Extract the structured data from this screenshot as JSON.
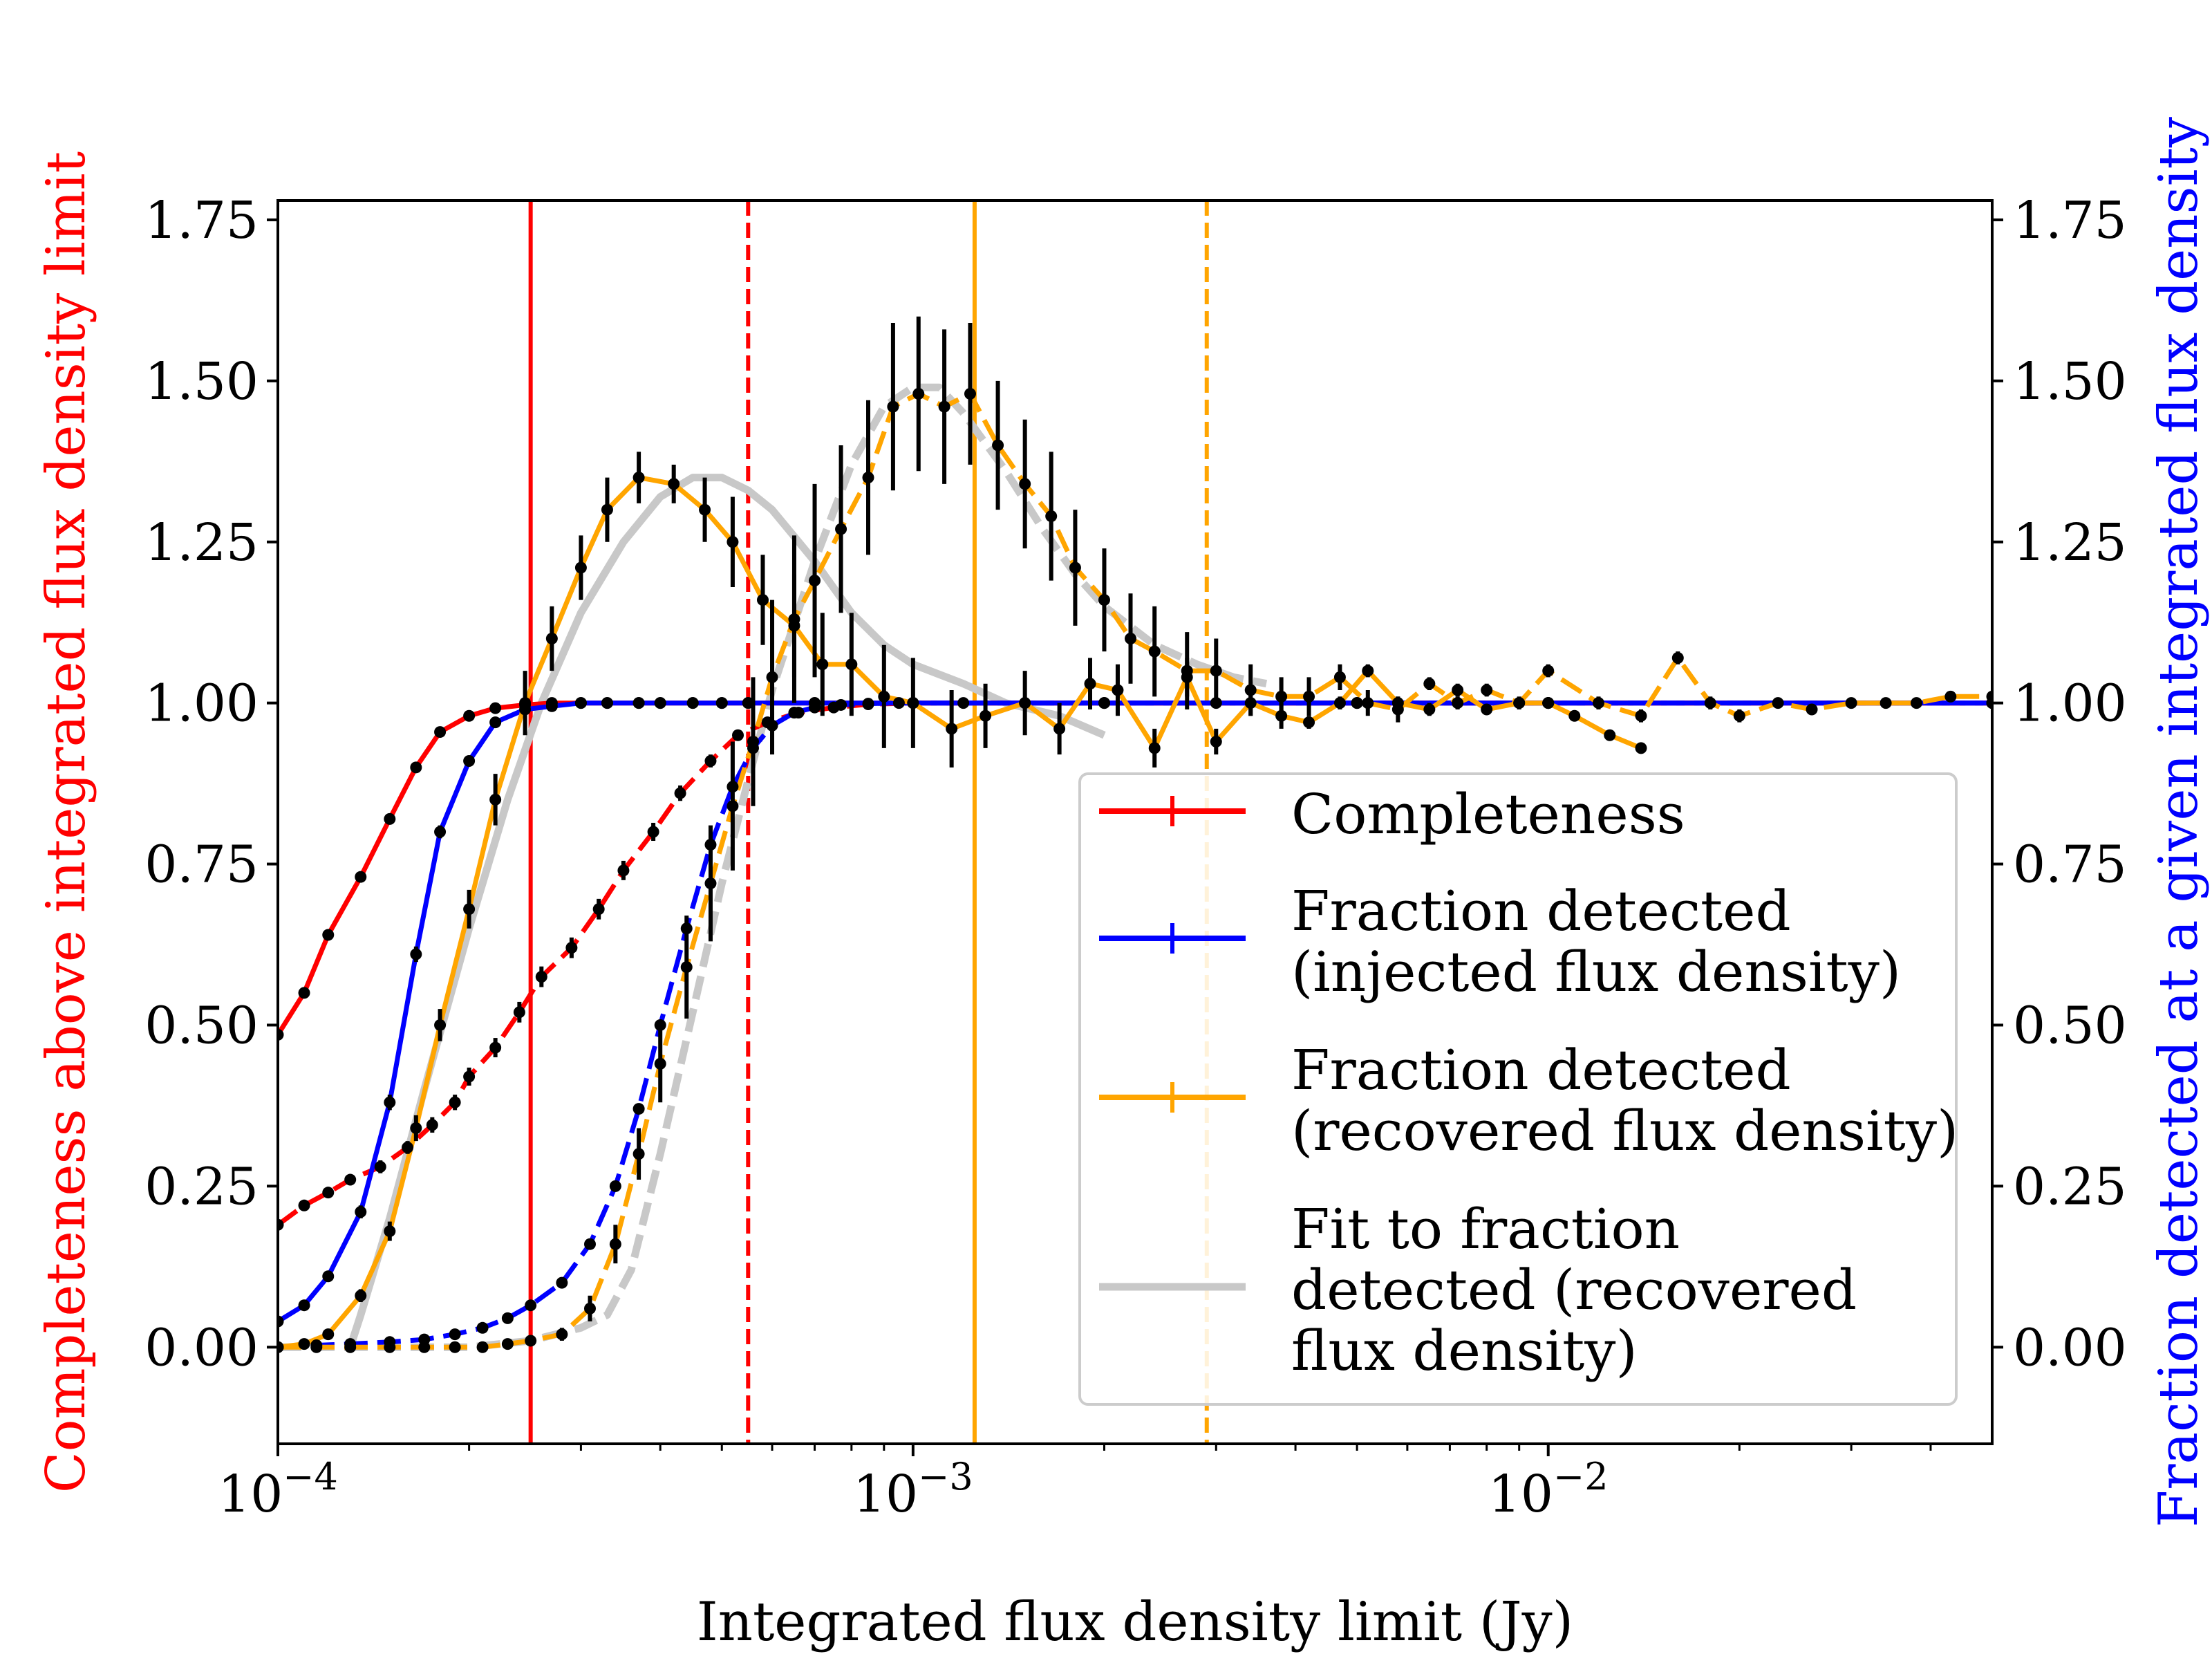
{
  "chart_data": {
    "type": "line",
    "title": "",
    "xlabel": "Integrated flux density limit (Jy)",
    "ylabel_left": "Completeness above integrated flux density limit",
    "ylabel_right": "Fraction detected at a given integrated flux density",
    "xscale": "log",
    "xlim": [
      0.0001,
      0.05
    ],
    "ylim": [
      -0.15,
      1.78
    ],
    "x_ticks": [
      {
        "value": 0.0001,
        "base": "10",
        "exp": "−4"
      },
      {
        "value": 0.001,
        "base": "10",
        "exp": "−3"
      },
      {
        "value": 0.01,
        "base": "10",
        "exp": "−2"
      }
    ],
    "y_ticks": [
      "0.00",
      "0.25",
      "0.50",
      "0.75",
      "1.00",
      "1.25",
      "1.50",
      "1.75"
    ],
    "y_tick_values": [
      0,
      0.25,
      0.5,
      0.75,
      1.0,
      1.25,
      1.5,
      1.75
    ],
    "colors": {
      "red": "#ff0000",
      "blue": "#0000ff",
      "orange": "#ffa500",
      "gray": "#c8c8c8",
      "points": "#000000"
    },
    "vertical_lines": [
      {
        "name": "completeness-limit-solid",
        "x": 0.00025,
        "color": "#ff0000",
        "dashed": false
      },
      {
        "name": "completeness-limit-dashed",
        "x": 0.00055,
        "color": "#ff0000",
        "dashed": true
      },
      {
        "name": "recovered-limit-solid",
        "x": 0.00125,
        "color": "#ffa500",
        "dashed": false
      },
      {
        "name": "recovered-limit-dashed",
        "x": 0.0029,
        "color": "#ffa500",
        "dashed": true
      }
    ],
    "series": [
      {
        "name": "completeness-solid",
        "color": "#ff0000",
        "dashed": false,
        "markers": true,
        "x": [
          0.0001,
          0.00011,
          0.00012,
          0.000135,
          0.00015,
          0.000165,
          0.00018,
          0.0002,
          0.00022,
          0.000245,
          0.00027,
          0.0003,
          0.00033,
          0.00037,
          0.0004,
          0.00045,
          0.0005,
          0.00055,
          0.0007,
          0.001,
          0.002,
          0.005,
          0.01,
          0.05
        ],
        "y": [
          0.485,
          0.55,
          0.64,
          0.73,
          0.82,
          0.9,
          0.955,
          0.98,
          0.992,
          0.997,
          1.0,
          1.0,
          1.0,
          1.0,
          1.0,
          1.0,
          1.0,
          1.0,
          1.0,
          1.0,
          1.0,
          1.0,
          1.0,
          1.0
        ],
        "err": [
          0,
          0.005,
          0.005,
          0.005,
          0.005,
          0.005,
          0.004,
          0.003,
          0.002,
          0.002,
          0,
          0,
          0,
          0,
          0,
          0,
          0,
          0,
          0,
          0,
          0,
          0,
          0,
          0
        ]
      },
      {
        "name": "completeness-dashed",
        "color": "#ff0000",
        "dashed": true,
        "markers": true,
        "x": [
          0.0001,
          0.00011,
          0.00012,
          0.00013,
          0.000145,
          0.00016,
          0.000175,
          0.00019,
          0.0002,
          0.00022,
          0.00024,
          0.00026,
          0.00029,
          0.00032,
          0.00035,
          0.00039,
          0.00043,
          0.00048,
          0.00053,
          0.00059,
          0.00066,
          0.00075,
          0.00085,
          0.001,
          0.0015,
          0.003,
          0.01,
          0.05
        ],
        "y": [
          0.19,
          0.22,
          0.24,
          0.26,
          0.28,
          0.31,
          0.345,
          0.38,
          0.42,
          0.465,
          0.52,
          0.575,
          0.62,
          0.68,
          0.74,
          0.8,
          0.86,
          0.91,
          0.95,
          0.97,
          0.985,
          0.993,
          0.998,
          1.0,
          1.0,
          1.0,
          1.0,
          1.0
        ],
        "err": [
          0,
          0.008,
          0.008,
          0.008,
          0.01,
          0.01,
          0.012,
          0.012,
          0.014,
          0.015,
          0.016,
          0.016,
          0.016,
          0.016,
          0.015,
          0.014,
          0.012,
          0.01,
          0.008,
          0.006,
          0.004,
          0.003,
          0.002,
          0,
          0,
          0,
          0,
          0
        ]
      },
      {
        "name": "injected-solid",
        "color": "#0000ff",
        "dashed": false,
        "markers": true,
        "x": [
          0.0001,
          0.00011,
          0.00012,
          0.000135,
          0.00015,
          0.000165,
          0.00018,
          0.0002,
          0.00022,
          0.000245,
          0.00027,
          0.0003,
          0.00033,
          0.00037,
          0.0004,
          0.00045,
          0.0005,
          0.00055,
          0.0007,
          0.001,
          0.002,
          0.005,
          0.01,
          0.05
        ],
        "y": [
          0.04,
          0.065,
          0.11,
          0.21,
          0.38,
          0.61,
          0.8,
          0.91,
          0.97,
          0.99,
          0.995,
          1.0,
          1.0,
          1.0,
          1.0,
          1.0,
          1.0,
          1.0,
          1.0,
          1.0,
          1.0,
          1.0,
          1.0,
          1.0
        ],
        "err": [
          0,
          0.005,
          0.008,
          0.01,
          0.012,
          0.012,
          0.01,
          0.008,
          0.005,
          0.003,
          0.002,
          0,
          0,
          0,
          0,
          0,
          0,
          0,
          0,
          0,
          0,
          0,
          0,
          0
        ]
      },
      {
        "name": "injected-dashed",
        "color": "#0000ff",
        "dashed": true,
        "markers": true,
        "x": [
          0.0001,
          0.000115,
          0.00013,
          0.00015,
          0.00017,
          0.00019,
          0.00021,
          0.00023,
          0.00025,
          0.00028,
          0.00031,
          0.00034,
          0.00037,
          0.0004,
          0.00044,
          0.00048,
          0.00052,
          0.00056,
          0.0006,
          0.00065,
          0.0007,
          0.00077,
          0.00085,
          0.00095,
          0.0012,
          0.002,
          0.005,
          0.01,
          0.05
        ],
        "y": [
          0.0,
          0.003,
          0.005,
          0.008,
          0.012,
          0.02,
          0.03,
          0.045,
          0.065,
          0.1,
          0.16,
          0.25,
          0.37,
          0.5,
          0.65,
          0.78,
          0.87,
          0.93,
          0.965,
          0.985,
          0.993,
          0.997,
          0.999,
          1.0,
          1.0,
          1.0,
          1.0,
          1.0,
          1.0
        ],
        "err": [
          0,
          0,
          0,
          0,
          0,
          0,
          0,
          0,
          0,
          0,
          0,
          0,
          0,
          0,
          0,
          0,
          0,
          0,
          0,
          0,
          0,
          0,
          0,
          0,
          0,
          0,
          0,
          0,
          0
        ]
      },
      {
        "name": "recovered-solid",
        "color": "#ffa500",
        "dashed": false,
        "markers": true,
        "x": [
          0.0001,
          0.00011,
          0.00012,
          0.000135,
          0.00015,
          0.000165,
          0.00018,
          0.0002,
          0.00022,
          0.000245,
          0.00027,
          0.0003,
          0.00033,
          0.00037,
          0.00042,
          0.00047,
          0.00052,
          0.00058,
          0.00065,
          0.00072,
          0.0008,
          0.0009,
          0.001,
          0.00115,
          0.0013,
          0.0015,
          0.0017,
          0.0019,
          0.0021,
          0.0024,
          0.0027,
          0.003,
          0.0034,
          0.0038,
          0.0042,
          0.0047,
          0.0052,
          0.0058,
          0.0065,
          0.0072,
          0.008,
          0.009,
          0.01,
          0.011,
          0.0125,
          0.014
        ],
        "y": [
          0.0,
          0.005,
          0.02,
          0.08,
          0.18,
          0.34,
          0.5,
          0.68,
          0.85,
          1.0,
          1.1,
          1.21,
          1.3,
          1.35,
          1.34,
          1.3,
          1.25,
          1.16,
          1.12,
          1.06,
          1.06,
          1.01,
          1.0,
          0.96,
          0.98,
          1.0,
          0.96,
          1.03,
          1.02,
          0.93,
          1.04,
          0.94,
          1.0,
          0.98,
          0.97,
          1.0,
          1.05,
          1.0,
          0.99,
          1.02,
          0.99,
          1.0,
          1.0,
          0.98,
          0.95,
          0.93
        ],
        "err": [
          0,
          0.005,
          0.008,
          0.01,
          0.015,
          0.02,
          0.025,
          0.03,
          0.04,
          0.05,
          0.05,
          0.05,
          0.05,
          0.04,
          0.03,
          0.05,
          0.07,
          0.07,
          0.08,
          0.08,
          0.08,
          0.08,
          0.07,
          0.06,
          0.05,
          0.05,
          0.04,
          0.04,
          0.04,
          0.03,
          0.03,
          0.02,
          0.02,
          0.02,
          0.01,
          0.01,
          0.01,
          0.01,
          0.01,
          0.01,
          0.005,
          0.005,
          0.005,
          0.005,
          0.005,
          0.005
        ]
      },
      {
        "name": "recovered-dashed",
        "color": "#ffa500",
        "dashed": true,
        "markers": true,
        "x": [
          0.0001,
          0.000115,
          0.00013,
          0.00015,
          0.00017,
          0.00019,
          0.00021,
          0.00023,
          0.00025,
          0.00028,
          0.00031,
          0.00034,
          0.00037,
          0.0004,
          0.00044,
          0.00048,
          0.00052,
          0.00056,
          0.0006,
          0.00065,
          0.0007,
          0.00077,
          0.00085,
          0.00093,
          0.00102,
          0.00112,
          0.00123,
          0.00136,
          0.0015,
          0.00165,
          0.0018,
          0.002,
          0.0022,
          0.0024,
          0.0027,
          0.003,
          0.0034,
          0.0038,
          0.0042,
          0.0047,
          0.0052,
          0.0058,
          0.0065,
          0.0072,
          0.008,
          0.009,
          0.01,
          0.012,
          0.014,
          0.016,
          0.018,
          0.02,
          0.023,
          0.026,
          0.03,
          0.034,
          0.038,
          0.043,
          0.05
        ],
        "y": [
          0.0,
          0.0,
          0.0,
          0.0,
          0.0,
          0.0,
          0.0,
          0.005,
          0.01,
          0.02,
          0.06,
          0.16,
          0.3,
          0.44,
          0.59,
          0.72,
          0.84,
          0.94,
          1.04,
          1.13,
          1.19,
          1.27,
          1.35,
          1.46,
          1.48,
          1.46,
          1.48,
          1.4,
          1.34,
          1.29,
          1.21,
          1.16,
          1.1,
          1.08,
          1.05,
          1.05,
          1.02,
          1.01,
          1.01,
          1.04,
          1.0,
          0.99,
          1.03,
          1.0,
          1.02,
          1.0,
          1.05,
          1.0,
          0.98,
          1.07,
          1.0,
          0.98,
          1.0,
          0.99,
          1.0,
          1.0,
          1.0,
          1.01,
          1.01
        ],
        "err": [
          0,
          0,
          0,
          0,
          0,
          0,
          0,
          0,
          0.005,
          0.01,
          0.02,
          0.03,
          0.04,
          0.06,
          0.08,
          0.09,
          0.1,
          0.1,
          0.12,
          0.13,
          0.15,
          0.13,
          0.12,
          0.13,
          0.12,
          0.12,
          0.11,
          0.1,
          0.1,
          0.1,
          0.09,
          0.08,
          0.07,
          0.07,
          0.06,
          0.05,
          0.04,
          0.03,
          0.03,
          0.02,
          0.02,
          0.02,
          0.01,
          0.01,
          0.01,
          0.01,
          0.01,
          0.01,
          0.01,
          0.01,
          0.01,
          0.01,
          0.005,
          0.005,
          0.005,
          0.005,
          0.005,
          0.005,
          0.005
        ]
      },
      {
        "name": "fit-solid",
        "color": "#c8c8c8",
        "dashed": false,
        "markers": false,
        "x": [
          0.00013,
          0.000135,
          0.00015,
          0.00017,
          0.0002,
          0.00023,
          0.00026,
          0.0003,
          0.00035,
          0.0004,
          0.00045,
          0.0005,
          0.00055,
          0.0006,
          0.0007,
          0.0008,
          0.0009,
          0.001,
          0.0012,
          0.0014,
          0.0017,
          0.002
        ],
        "y": [
          0.0,
          0.05,
          0.2,
          0.4,
          0.65,
          0.85,
          1.0,
          1.14,
          1.25,
          1.32,
          1.35,
          1.35,
          1.33,
          1.3,
          1.22,
          1.14,
          1.09,
          1.06,
          1.03,
          1.0,
          0.98,
          0.95
        ]
      },
      {
        "name": "fit-dashed",
        "color": "#c8c8c8",
        "dashed": true,
        "markers": false,
        "x": [
          0.0001,
          0.00015,
          0.0002,
          0.00025,
          0.0003,
          0.00033,
          0.00036,
          0.0004,
          0.00045,
          0.0005,
          0.00055,
          0.0006,
          0.0007,
          0.0008,
          0.0009,
          0.001,
          0.0011,
          0.0012,
          0.0014,
          0.0016,
          0.0018,
          0.002,
          0.0024,
          0.0028,
          0.0032,
          0.0036
        ],
        "y": [
          0.0,
          0.0,
          0.0,
          0.01,
          0.03,
          0.05,
          0.12,
          0.3,
          0.52,
          0.72,
          0.88,
          1.02,
          1.22,
          1.37,
          1.46,
          1.49,
          1.49,
          1.45,
          1.36,
          1.27,
          1.2,
          1.15,
          1.09,
          1.06,
          1.04,
          1.03
        ]
      }
    ],
    "legend": {
      "position": "lower-right",
      "entries": [
        {
          "lines": [
            "Completeness"
          ],
          "color": "#ff0000",
          "style": "solid-with-errorbar"
        },
        {
          "lines": [
            "Fraction detected",
            "(injected flux density)"
          ],
          "color": "#0000ff",
          "style": "solid-with-errorbar"
        },
        {
          "lines": [
            "Fraction detected",
            "(recovered flux density)"
          ],
          "color": "#ffa500",
          "style": "solid-with-errorbar"
        },
        {
          "lines": [
            "Fit to fraction",
            "detected (recovered",
            "flux density)"
          ],
          "color": "#c8c8c8",
          "style": "solid"
        }
      ]
    }
  }
}
